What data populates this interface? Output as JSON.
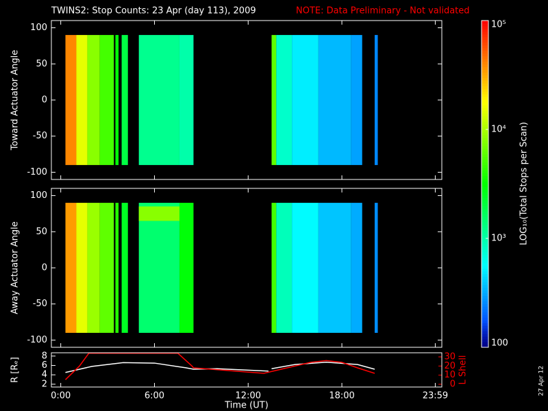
{
  "title": "TWINS2: Stop Counts: 23 Apr (day 113), 2009",
  "note": "NOTE: Data Preliminary - Not validated",
  "stamp": "27 Apr 12",
  "colorbar": {
    "label": "LOG₁₀(Total Stops per Scan)",
    "log": true,
    "lim": [
      100,
      100000
    ],
    "ticks": [
      {
        "value": 100,
        "label": "100"
      },
      {
        "value": 1000,
        "label": "10³"
      },
      {
        "value": 10000,
        "label": "10⁴"
      },
      {
        "value": 100000,
        "label": "10⁵"
      }
    ]
  },
  "chart_data": [
    {
      "type": "heatmap",
      "ylabel": "Toward Actuator Angle",
      "xlim": [
        -0.6,
        24.4
      ],
      "ylim": [
        -110,
        110
      ],
      "yticks": [
        -100,
        -50,
        0,
        50,
        100
      ],
      "segments": [
        {
          "x0": 0.3,
          "x1": 1.0,
          "y0": -90,
          "y1": 90,
          "value": 40000
        },
        {
          "x0": 1.0,
          "x1": 1.7,
          "y0": -90,
          "y1": 90,
          "value": 15000
        },
        {
          "x0": 1.7,
          "x1": 2.5,
          "y0": -90,
          "y1": 90,
          "value": 8000
        },
        {
          "x0": 2.5,
          "x1": 3.4,
          "y0": -90,
          "y1": 90,
          "value": 5000
        },
        {
          "x0": 3.5,
          "x1": 3.7,
          "y0": -90,
          "y1": 90,
          "value": 3000
        },
        {
          "x0": 3.9,
          "x1": 4.3,
          "y0": -90,
          "y1": 90,
          "value": 2000
        },
        {
          "x0": 5.0,
          "x1": 7.6,
          "y0": -90,
          "y1": 90,
          "value": 1200
        },
        {
          "x0": 7.6,
          "x1": 8.5,
          "y0": -90,
          "y1": 90,
          "value": 1000
        },
        {
          "x0": 13.5,
          "x1": 13.8,
          "y0": -90,
          "y1": 90,
          "value": 6000
        },
        {
          "x0": 13.8,
          "x1": 14.8,
          "y0": -90,
          "y1": 90,
          "value": 800
        },
        {
          "x0": 14.8,
          "x1": 16.5,
          "y0": -90,
          "y1": 90,
          "value": 500
        },
        {
          "x0": 16.5,
          "x1": 18.6,
          "y0": -90,
          "y1": 90,
          "value": 350
        },
        {
          "x0": 18.6,
          "x1": 19.3,
          "y0": -90,
          "y1": 90,
          "value": 300
        },
        {
          "x0": 20.1,
          "x1": 20.3,
          "y0": -90,
          "y1": 90,
          "value": 250
        }
      ]
    },
    {
      "type": "heatmap",
      "ylabel": "Away Actuator Angle",
      "xlim": [
        -0.6,
        24.4
      ],
      "ylim": [
        -110,
        110
      ],
      "yticks": [
        -100,
        -50,
        0,
        50,
        100
      ],
      "segments": [
        {
          "x0": 0.3,
          "x1": 1.0,
          "y0": -90,
          "y1": 90,
          "value": 35000
        },
        {
          "x0": 1.0,
          "x1": 1.7,
          "y0": -90,
          "y1": 90,
          "value": 15000
        },
        {
          "x0": 1.7,
          "x1": 2.5,
          "y0": -90,
          "y1": 90,
          "value": 9000
        },
        {
          "x0": 2.5,
          "x1": 3.4,
          "y0": -90,
          "y1": 90,
          "value": 6000
        },
        {
          "x0": 3.5,
          "x1": 3.7,
          "y0": -90,
          "y1": 90,
          "value": 4000
        },
        {
          "x0": 3.9,
          "x1": 4.3,
          "y0": -90,
          "y1": 90,
          "value": 2500
        },
        {
          "x0": 5.0,
          "x1": 7.6,
          "y0": -90,
          "y1": 90,
          "value": 1500
        },
        {
          "x0": 5.0,
          "x1": 7.6,
          "y0": 65,
          "y1": 85,
          "value": 8000
        },
        {
          "x0": 7.6,
          "x1": 8.5,
          "y0": -90,
          "y1": 90,
          "value": 3000
        },
        {
          "x0": 13.5,
          "x1": 13.8,
          "y0": -90,
          "y1": 90,
          "value": 5000
        },
        {
          "x0": 13.8,
          "x1": 14.8,
          "y0": -90,
          "y1": 90,
          "value": 900
        },
        {
          "x0": 14.8,
          "x1": 16.5,
          "y0": -90,
          "y1": 90,
          "value": 550
        },
        {
          "x0": 16.5,
          "x1": 18.6,
          "y0": -90,
          "y1": 90,
          "value": 380
        },
        {
          "x0": 18.6,
          "x1": 19.3,
          "y0": -90,
          "y1": 90,
          "value": 320
        },
        {
          "x0": 20.1,
          "x1": 20.3,
          "y0": -90,
          "y1": 90,
          "value": 260
        }
      ]
    },
    {
      "type": "line",
      "xlabel": "Time (UT)",
      "ylabel": "R [Rₑ]",
      "y2label": "L Shell",
      "y2color": "#ff0000",
      "xlim": [
        -0.6,
        24.4
      ],
      "xticks": [
        {
          "value": 0,
          "label": "0:00"
        },
        {
          "value": 6,
          "label": "6:00"
        },
        {
          "value": 12,
          "label": "12:00"
        },
        {
          "value": 18,
          "label": "18:00"
        },
        {
          "value": 23.98,
          "label": "23:59"
        }
      ],
      "ylim": [
        1.4,
        8.7
      ],
      "yticks": [
        2,
        4,
        6,
        8
      ],
      "y2lim": [
        -3,
        34.5
      ],
      "y2ticks": [
        0,
        10,
        20,
        30
      ],
      "series": [
        {
          "color": "#ffffff",
          "x": [
            0.3,
            2,
            4,
            6,
            8,
            8.5,
            10,
            12,
            13.3,
            13.4,
            13.5,
            15,
            17,
            19,
            20.1
          ],
          "values": [
            4.5,
            5.8,
            6.6,
            6.5,
            5.5,
            5.2,
            5.3,
            5.0,
            4.8,
            null,
            5.3,
            6.2,
            6.7,
            6.2,
            5.2
          ]
        },
        {
          "color": "#ff0000",
          "axis": "y2",
          "x": [
            0.3,
            1.2,
            1.8,
            7.5,
            8.4,
            8.5,
            13,
            14,
            16,
            17,
            18,
            19,
            20.1
          ],
          "values": [
            5,
            20,
            34,
            34,
            20,
            18,
            12,
            16,
            24,
            26,
            24,
            18,
            12
          ]
        }
      ]
    }
  ]
}
